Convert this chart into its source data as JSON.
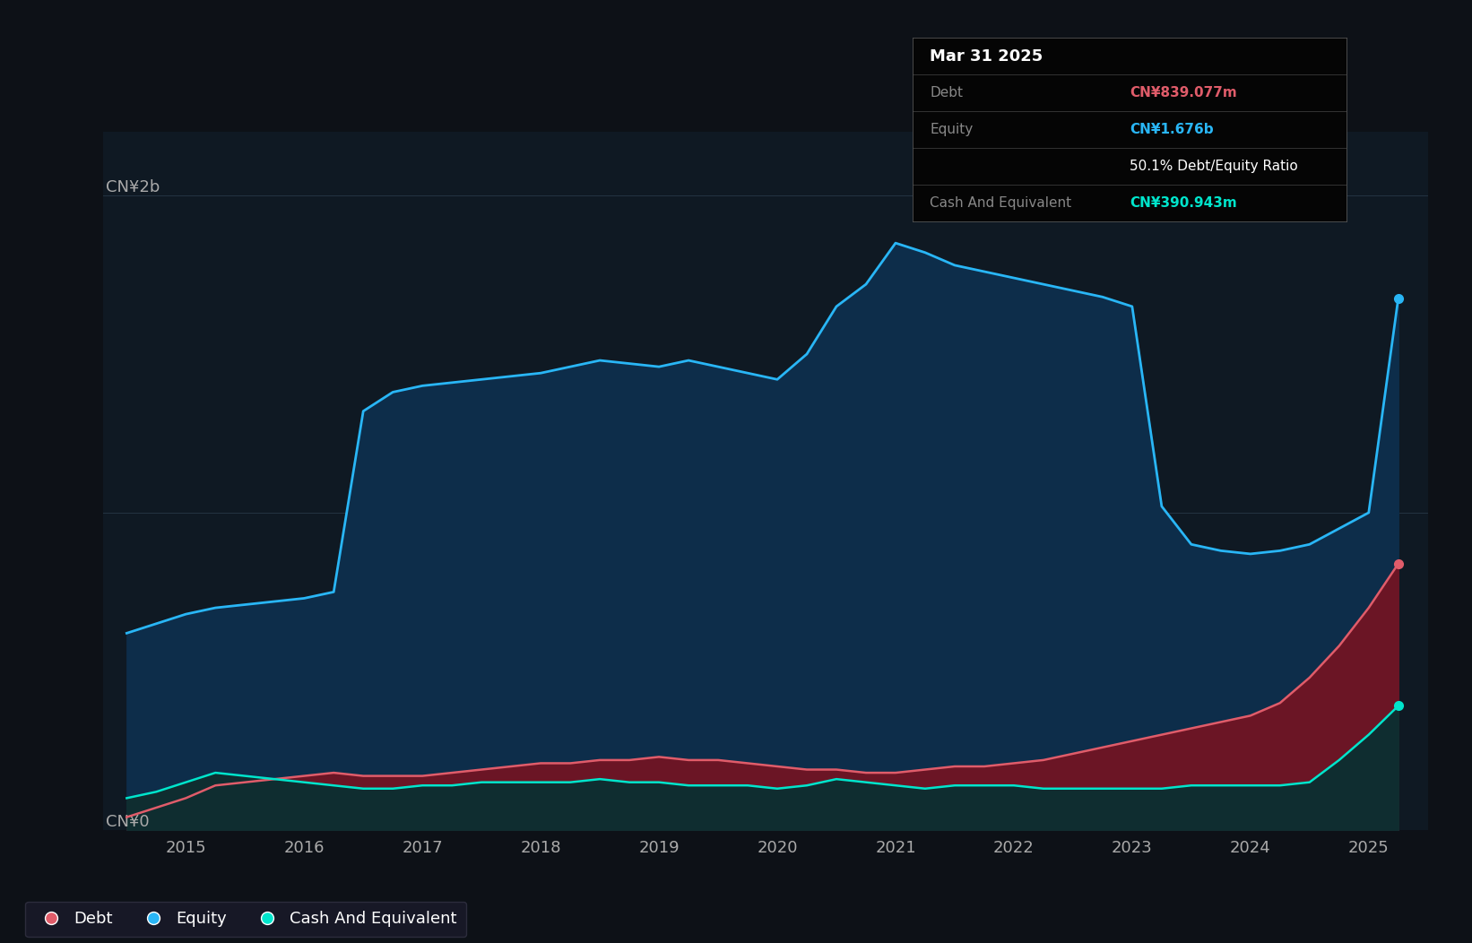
{
  "bg_color": "#111820",
  "plot_bg_color": "#0f1923",
  "outer_bg_color": "#0d1117",
  "grid_color": "#2a3a4a",
  "text_color": "#aaaaaa",
  "title_color": "#ffffff",
  "ylabel_2b": "CN¥2b",
  "ylabel_0": "CN¥0",
  "debt_color": "#e05c6a",
  "equity_color": "#29b6f6",
  "cash_color": "#00e5cc",
  "debt_fill": "#6b1525",
  "equity_fill": "#0d2d4a",
  "cash_fill": "#0f2d30",
  "tooltip_bg": "#050505",
  "tooltip_date": "Mar 31 2025",
  "tooltip_debt_label": "Debt",
  "tooltip_debt_value": "CN¥839.077m",
  "tooltip_equity_label": "Equity",
  "tooltip_equity_value": "CN¥1.676b",
  "tooltip_ratio": "50.1% Debt/Equity Ratio",
  "tooltip_cash_label": "Cash And Equivalent",
  "tooltip_cash_value": "CN¥390.943m",
  "years_x": [
    2014.5,
    2014.75,
    2015.0,
    2015.25,
    2015.5,
    2015.75,
    2016.0,
    2016.25,
    2016.5,
    2016.75,
    2017.0,
    2017.25,
    2017.5,
    2017.75,
    2018.0,
    2018.25,
    2018.5,
    2018.75,
    2019.0,
    2019.25,
    2019.5,
    2019.75,
    2020.0,
    2020.25,
    2020.5,
    2020.75,
    2021.0,
    2021.25,
    2021.5,
    2021.75,
    2022.0,
    2022.25,
    2022.5,
    2022.75,
    2023.0,
    2023.25,
    2023.5,
    2023.75,
    2024.0,
    2024.25,
    2024.5,
    2024.75,
    2025.0,
    2025.25
  ],
  "equity": [
    0.62,
    0.65,
    0.68,
    0.7,
    0.71,
    0.72,
    0.73,
    0.75,
    1.32,
    1.38,
    1.4,
    1.41,
    1.42,
    1.43,
    1.44,
    1.46,
    1.48,
    1.47,
    1.46,
    1.48,
    1.46,
    1.44,
    1.42,
    1.5,
    1.65,
    1.72,
    1.85,
    1.82,
    1.78,
    1.76,
    1.74,
    1.72,
    1.7,
    1.68,
    1.65,
    1.02,
    0.9,
    0.88,
    0.87,
    0.88,
    0.9,
    0.95,
    1.0,
    1.676
  ],
  "debt": [
    0.04,
    0.07,
    0.1,
    0.14,
    0.15,
    0.16,
    0.17,
    0.18,
    0.17,
    0.17,
    0.17,
    0.18,
    0.19,
    0.2,
    0.21,
    0.21,
    0.22,
    0.22,
    0.23,
    0.22,
    0.22,
    0.21,
    0.2,
    0.19,
    0.19,
    0.18,
    0.18,
    0.19,
    0.2,
    0.2,
    0.21,
    0.22,
    0.24,
    0.26,
    0.28,
    0.3,
    0.32,
    0.34,
    0.36,
    0.4,
    0.48,
    0.58,
    0.7,
    0.839
  ],
  "cash": [
    0.1,
    0.12,
    0.15,
    0.18,
    0.17,
    0.16,
    0.15,
    0.14,
    0.13,
    0.13,
    0.14,
    0.14,
    0.15,
    0.15,
    0.15,
    0.15,
    0.16,
    0.15,
    0.15,
    0.14,
    0.14,
    0.14,
    0.13,
    0.14,
    0.16,
    0.15,
    0.14,
    0.13,
    0.14,
    0.14,
    0.14,
    0.13,
    0.13,
    0.13,
    0.13,
    0.13,
    0.14,
    0.14,
    0.14,
    0.14,
    0.15,
    0.22,
    0.3,
    0.391
  ],
  "xlim": [
    2014.3,
    2025.5
  ],
  "ylim": [
    0,
    2.2
  ],
  "xticks": [
    2015,
    2016,
    2017,
    2018,
    2019,
    2020,
    2021,
    2022,
    2023,
    2024,
    2025
  ],
  "legend_items": [
    "Debt",
    "Equity",
    "Cash And Equivalent"
  ]
}
